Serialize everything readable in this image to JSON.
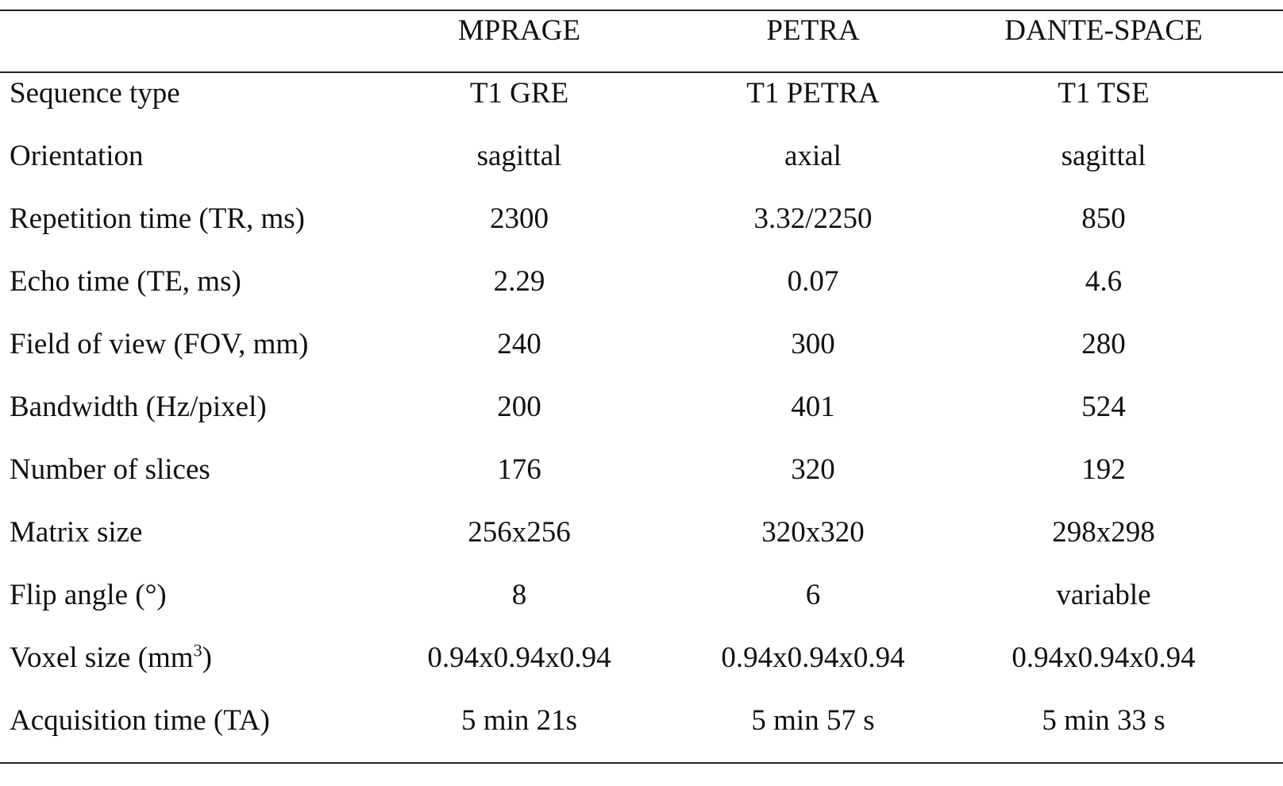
{
  "table": {
    "columns": [
      "",
      "MPRAGE",
      "PETRA",
      "DANTE-SPACE"
    ],
    "rows": [
      {
        "label": "Sequence type",
        "values": [
          "T1 GRE",
          "T1 PETRA",
          "T1 TSE"
        ]
      },
      {
        "label": "Orientation",
        "values": [
          "sagittal",
          "axial",
          "sagittal"
        ]
      },
      {
        "label": "Repetition time (TR, ms)",
        "values": [
          "2300",
          "3.32/2250",
          "850"
        ]
      },
      {
        "label": "Echo time (TE, ms)",
        "values": [
          "2.29",
          "0.07",
          "4.6"
        ]
      },
      {
        "label": "Field of view (FOV, mm)",
        "values": [
          "240",
          "300",
          "280"
        ]
      },
      {
        "label": "Bandwidth (Hz/pixel)",
        "values": [
          "200",
          "401",
          "524"
        ]
      },
      {
        "label": "Number of slices",
        "values": [
          "176",
          "320",
          "192"
        ]
      },
      {
        "label": "Matrix size",
        "values": [
          "256x256",
          "320x320",
          "298x298"
        ]
      },
      {
        "label": "Flip angle (°)",
        "values": [
          "8",
          "6",
          "variable"
        ]
      },
      {
        "label": "Voxel size (mm",
        "label_sup": "3",
        "label_suffix": ")",
        "values": [
          "0.94x0.94x0.94",
          "0.94x0.94x0.94",
          "0.94x0.94x0.94"
        ]
      },
      {
        "label": "Acquisition time (TA)",
        "values": [
          "5 min 21s",
          "5 min 57 s",
          "5 min 33 s"
        ]
      }
    ]
  }
}
